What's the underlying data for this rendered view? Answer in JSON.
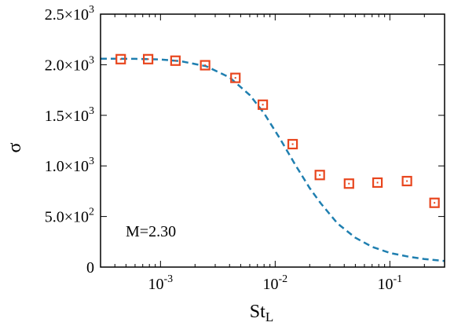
{
  "chart_data": {
    "type": "scatter",
    "xscale": "log",
    "xlim": [
      0.0003,
      0.3
    ],
    "ylim": [
      0,
      2500
    ],
    "xlabel": "St",
    "xlabel_sub": "L",
    "ylabel": "σ",
    "annotation": "M=2.30",
    "colors": {
      "markers": "#e8461e",
      "fit": "#1f7fb0",
      "axes": "#000000"
    },
    "xticks": [
      {
        "value": 0.001,
        "base": "10",
        "exp": "-3"
      },
      {
        "value": 0.01,
        "base": "10",
        "exp": "-2"
      },
      {
        "value": 0.1,
        "base": "10",
        "exp": "-1"
      }
    ],
    "yticks": [
      {
        "value": 0,
        "text": "0",
        "exp": ""
      },
      {
        "value": 500,
        "text": "5.0×10",
        "exp": "2"
      },
      {
        "value": 1000,
        "text": "1.0×10",
        "exp": "3"
      },
      {
        "value": 1500,
        "text": "1.5×10",
        "exp": "3"
      },
      {
        "value": 2000,
        "text": "2.0×10",
        "exp": "3"
      },
      {
        "value": 2500,
        "text": "2.5×10",
        "exp": "3"
      }
    ],
    "series": [
      {
        "style": "square-markers",
        "x": [
          0.00045,
          0.00078,
          0.00135,
          0.00245,
          0.0045,
          0.0078,
          0.0142,
          0.0245,
          0.044,
          0.078,
          0.141,
          0.245
        ],
        "y": [
          2055,
          2055,
          2040,
          1995,
          1870,
          1605,
          1215,
          910,
          825,
          835,
          850,
          635
        ]
      },
      {
        "style": "dashed-line",
        "x": [
          0.0003,
          0.0006,
          0.001,
          0.0015,
          0.0025,
          0.004,
          0.006,
          0.008,
          0.011,
          0.015,
          0.02,
          0.025,
          0.035,
          0.05,
          0.07,
          0.1,
          0.15,
          0.2,
          0.3
        ],
        "y": [
          2060,
          2058,
          2052,
          2035,
          1985,
          1875,
          1700,
          1520,
          1270,
          1010,
          780,
          630,
          430,
          290,
          200,
          140,
          100,
          80,
          60
        ]
      }
    ]
  }
}
